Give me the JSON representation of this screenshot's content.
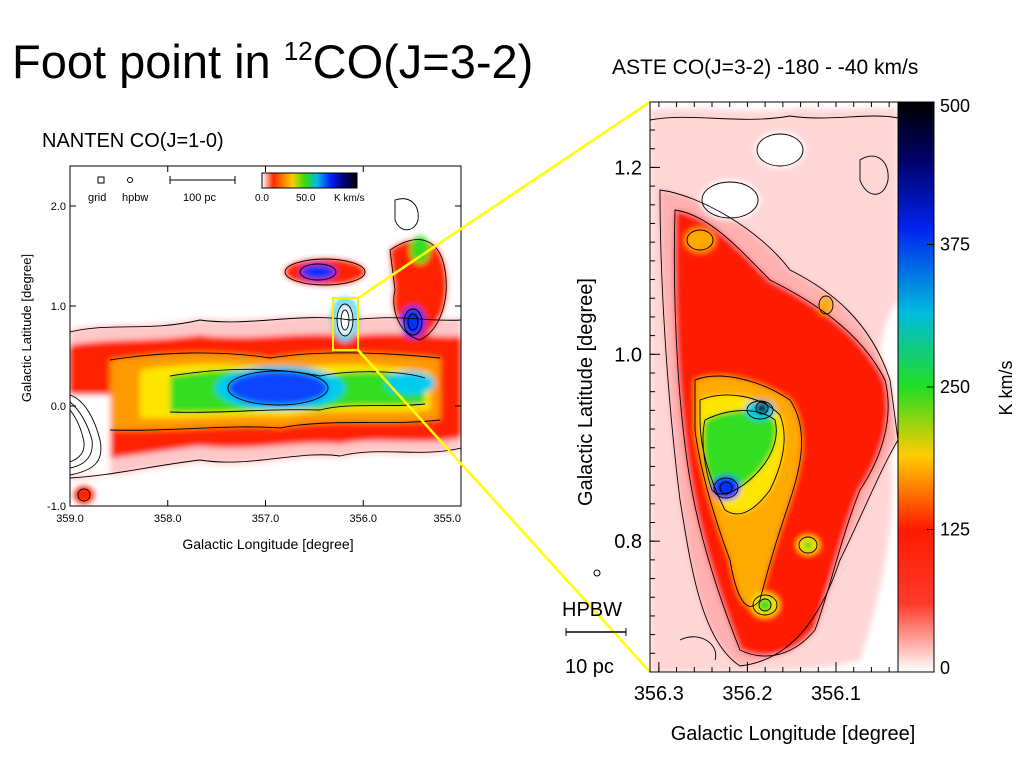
{
  "slide": {
    "title_main": "Foot point in ",
    "title_sup": "12",
    "title_rest": "CO(J=3-2)"
  },
  "nanten": {
    "label": "NANTEN CO(J=1-0)",
    "legend": {
      "grid": "grid",
      "hpbw": "hpbw",
      "scale": "100 pc",
      "cbar_min": "0.0",
      "cbar_mid": "50.0",
      "cbar_unit": "K km/s"
    },
    "xlabel": "Galactic Longitude [degree]",
    "ylabel": "Galactic Latitude [degree]",
    "xticks": [
      "359.0",
      "358.0",
      "357.0",
      "356.0",
      "355.0"
    ],
    "yticks": [
      "2.0",
      "1.0",
      "0.0",
      "-1.0"
    ],
    "xlim": [
      359.0,
      355.0
    ],
    "ylim": [
      -1.0,
      2.4
    ]
  },
  "aste": {
    "label": "ASTE CO(J=3-2) -180 - -40 km/s",
    "xlabel": "Galactic Longitude [degree]",
    "ylabel": "Galactic Latitude [degree]",
    "xticks": [
      "356.3",
      "356.2",
      "356.1"
    ],
    "yticks": [
      "1.2",
      "1.0",
      "0.8"
    ],
    "cbar_ticks": [
      "500",
      "375",
      "250",
      "125",
      "0"
    ],
    "cbar_label": "K km/s",
    "hpbw": "HPBW",
    "scale": "10 pc",
    "xlim": [
      356.31,
      356.03
    ],
    "ylim": [
      0.66,
      1.27
    ]
  },
  "colors": {
    "zoom_lines": "#ffff00",
    "low": "#ffffff",
    "mid": "#ff1a00",
    "high": "#0000ff",
    "peak": "#000000"
  }
}
